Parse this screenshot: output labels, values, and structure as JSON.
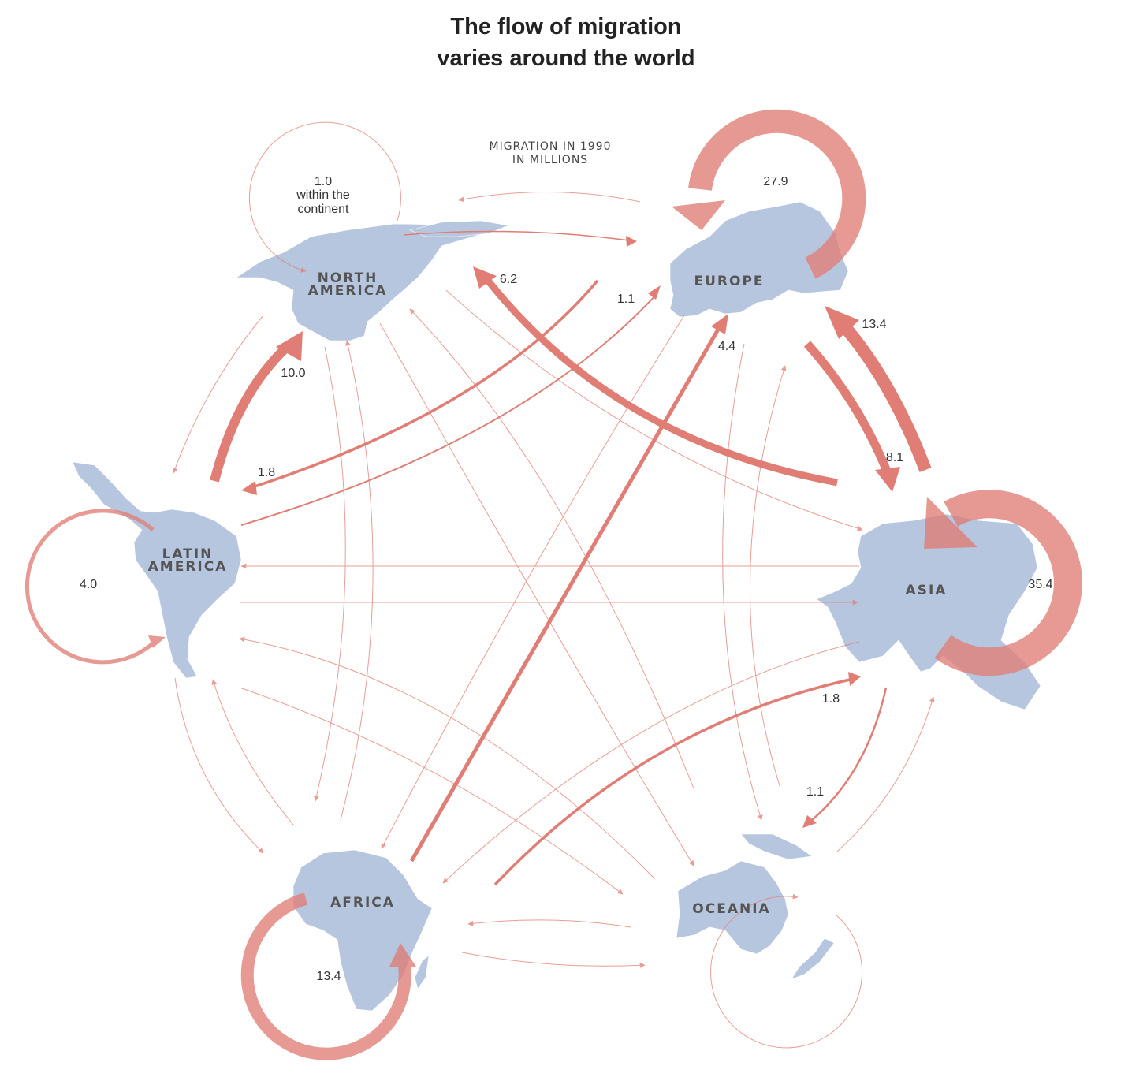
{
  "title": {
    "line1": "The flow of migration",
    "line2": "varies around the world"
  },
  "subtitle": {
    "line1": "MIGRATION IN 1990",
    "line2": "IN MILLIONS"
  },
  "regions": {
    "north_america": {
      "line1": "NORTH",
      "line2": "AMERICA"
    },
    "europe": "EUROPE",
    "latin_america": {
      "line1": "LATIN",
      "line2": "AMERICA"
    },
    "asia": "ASIA",
    "africa": "AFRICA",
    "oceania": "OCEANIA"
  },
  "within_labels": {
    "north_america": {
      "value": "1.0",
      "line2": "within the",
      "line3": "continent"
    },
    "europe": "27.9",
    "latin_america": "4.0",
    "asia": "35.4",
    "africa": "13.4"
  },
  "flow_labels": {
    "asia_to_north_america": "6.2",
    "latin_america_to_north_america": "10.0",
    "latin_america_to_europe": "1.1",
    "europe_to_latin_america": "1.8",
    "africa_to_europe": "4.4",
    "asia_to_europe": "13.4",
    "europe_to_asia": "8.1",
    "africa_to_asia": "1.8",
    "asia_to_oceania": "1.1"
  },
  "colors": {
    "flow": "#e07d75",
    "land": "#b7c6df",
    "region_text": "#555555"
  }
}
